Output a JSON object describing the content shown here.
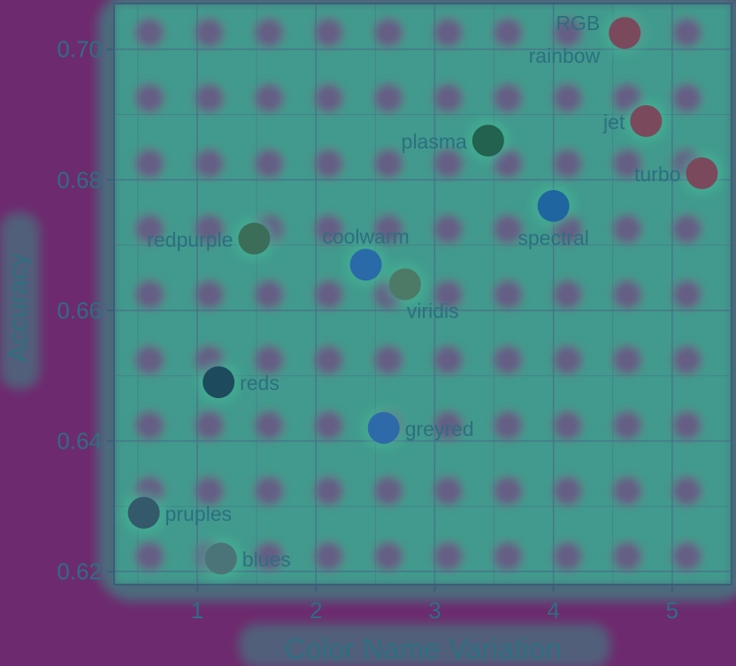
{
  "chart_data": {
    "type": "scatter",
    "xlabel": "Color Name Variation",
    "ylabel": "Accuracy",
    "xlim": [
      0.3,
      5.5
    ],
    "ylim": [
      0.618,
      0.707
    ],
    "x_ticks": [
      1,
      2,
      3,
      4,
      5
    ],
    "y_ticks": [
      0.62,
      0.64,
      0.66,
      0.68,
      0.7
    ],
    "x_tick_labels": [
      "1",
      "2",
      "3",
      "4",
      "5"
    ],
    "y_tick_labels": [
      "0.62",
      "0.64",
      "0.66",
      "0.68",
      "0.70"
    ],
    "grid": true,
    "points": [
      {
        "label": "RGB",
        "x": 4.6,
        "y": 0.7025,
        "color": "#7a4a5c",
        "label_pos": "left-upper"
      },
      {
        "label": "rainbow",
        "x": 4.6,
        "y": 0.7025,
        "color": "#7a4a5c",
        "label_pos": "left-lower"
      },
      {
        "label": "jet",
        "x": 4.78,
        "y": 0.689,
        "color": "#7a4a5c",
        "label_pos": "left"
      },
      {
        "label": "turbo",
        "x": 5.25,
        "y": 0.681,
        "color": "#7a4a5c",
        "label_pos": "left"
      },
      {
        "label": "plasma",
        "x": 3.45,
        "y": 0.686,
        "color": "#22624f",
        "label_pos": "left"
      },
      {
        "label": "spectral",
        "x": 4.0,
        "y": 0.676,
        "color": "#1f66a0",
        "label_pos": "below"
      },
      {
        "label": "redpurple",
        "x": 1.48,
        "y": 0.671,
        "color": "#3b6d58",
        "label_pos": "left"
      },
      {
        "label": "coolwarm",
        "x": 2.42,
        "y": 0.667,
        "color": "#2a6aa8",
        "label_pos": "above"
      },
      {
        "label": "viridis",
        "x": 2.75,
        "y": 0.664,
        "color": "#4d7a66",
        "label_pos": "below-right"
      },
      {
        "label": "reds",
        "x": 1.18,
        "y": 0.649,
        "color": "#1d4a5c",
        "label_pos": "right"
      },
      {
        "label": "greyred",
        "x": 2.57,
        "y": 0.642,
        "color": "#2e6aaa",
        "label_pos": "right"
      },
      {
        "label": "pruples",
        "x": 0.55,
        "y": 0.629,
        "color": "#33596a",
        "label_pos": "right"
      },
      {
        "label": "blues",
        "x": 1.2,
        "y": 0.622,
        "color": "#4b7478",
        "label_pos": "right"
      }
    ]
  }
}
